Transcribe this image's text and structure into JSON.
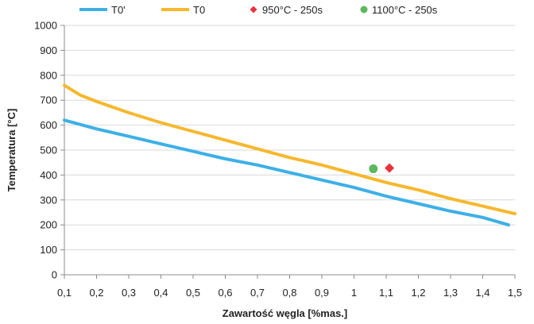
{
  "chart_data": {
    "type": "line",
    "title": "",
    "xlabel": "Zawartość węgla [%mas.]",
    "ylabel": "Temperatura [°C]",
    "xlim": [
      0.1,
      1.5
    ],
    "ylim": [
      0,
      1000
    ],
    "x_ticks": [
      0.1,
      0.2,
      0.3,
      0.4,
      0.5,
      0.6,
      0.7,
      0.8,
      0.9,
      1.0,
      1.1,
      1.2,
      1.3,
      1.4,
      1.5
    ],
    "x_tick_labels": [
      "0,1",
      "0,2",
      "0,3",
      "0,4",
      "0,5",
      "0,6",
      "0,7",
      "0,8",
      "0,9",
      "1",
      "1,1",
      "1,2",
      "1,3",
      "1,4",
      "1,5"
    ],
    "y_ticks": [
      0,
      100,
      200,
      300,
      400,
      500,
      600,
      700,
      800,
      900,
      1000
    ],
    "y_tick_labels": [
      "0",
      "100",
      "200",
      "300",
      "400",
      "500",
      "600",
      "700",
      "800",
      "900",
      "1000"
    ],
    "grid": "horizontal",
    "legend_position": "top",
    "series": [
      {
        "name": "T0'",
        "kind": "line",
        "color": "#3DB0E6",
        "x": [
          0.1,
          0.2,
          0.3,
          0.4,
          0.5,
          0.6,
          0.7,
          0.8,
          0.9,
          1.0,
          1.1,
          1.2,
          1.3,
          1.4,
          1.48
        ],
        "y": [
          620,
          585,
          555,
          525,
          495,
          465,
          440,
          410,
          380,
          350,
          315,
          285,
          255,
          230,
          200
        ]
      },
      {
        "name": "T0",
        "kind": "line",
        "color": "#F5B82E",
        "x": [
          0.1,
          0.15,
          0.2,
          0.3,
          0.4,
          0.5,
          0.6,
          0.7,
          0.8,
          0.9,
          1.0,
          1.1,
          1.2,
          1.3,
          1.4,
          1.5
        ],
        "y": [
          760,
          720,
          695,
          650,
          610,
          575,
          540,
          505,
          470,
          440,
          405,
          370,
          340,
          305,
          275,
          245
        ]
      },
      {
        "name": "950°C - 250s",
        "kind": "marker",
        "marker": "diamond",
        "color": "#E8323C",
        "x": [
          1.11
        ],
        "y": [
          428
        ]
      },
      {
        "name": "1100°C - 250s",
        "kind": "marker",
        "marker": "circle",
        "color": "#5CB85C",
        "x": [
          1.06
        ],
        "y": [
          425
        ]
      }
    ]
  }
}
